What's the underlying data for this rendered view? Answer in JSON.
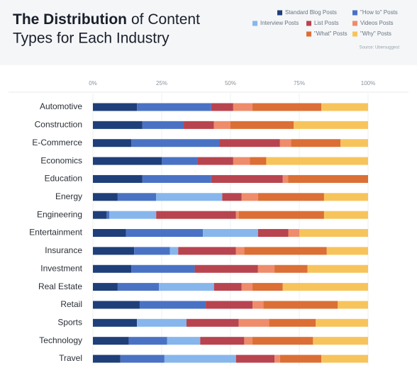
{
  "chart_data": {
    "type": "stacked_bar_horizontal",
    "title_bold": "The Distribution",
    "title_rest": "of Content",
    "title_line2": "Types for Each Industry",
    "source": "Source: Ubersuggest",
    "categories": [
      "Automotive",
      "Construction",
      "E-Commerce",
      "Economics",
      "Education",
      "Energy",
      "Engineering",
      "Entertainment",
      "Insurance",
      "Investment",
      "Real Estate",
      "Retail",
      "Sports",
      "Technology",
      "Travel"
    ],
    "series": [
      {
        "name": "Standard Blog Posts",
        "color": "#1f3f7a",
        "values": [
          16,
          18,
          14,
          25,
          18,
          9,
          5,
          12,
          15,
          14,
          9,
          17,
          16,
          13,
          10
        ]
      },
      {
        "name": "\"How to\" Posts",
        "color": "#4a72c4",
        "values": [
          27,
          15,
          32,
          13,
          25,
          14,
          1,
          28,
          13,
          23,
          15,
          24,
          0,
          14,
          16
        ]
      },
      {
        "name": "Interview Posts",
        "color": "#86b6ec",
        "values": [
          0,
          0,
          0,
          0,
          0,
          24,
          17,
          20,
          3,
          0,
          20,
          0,
          18,
          12,
          26
        ]
      },
      {
        "name": "List Posts",
        "color": "#b8444f",
        "values": [
          8,
          11,
          22,
          13,
          26,
          7,
          29,
          11,
          21,
          23,
          10,
          17,
          19,
          16,
          14
        ]
      },
      {
        "name": "Videos Posts",
        "color": "#ee8c6b",
        "values": [
          7,
          6,
          4,
          6,
          2,
          6,
          1,
          4,
          3,
          6,
          4,
          4,
          11,
          3,
          2
        ]
      },
      {
        "name": "\"What\" Posts",
        "color": "#dc6f35",
        "values": [
          25,
          23,
          18,
          6,
          29,
          24,
          31,
          0,
          30,
          12,
          11,
          27,
          17,
          22,
          15
        ]
      },
      {
        "name": "\"Why\" Posts",
        "color": "#f7c45c",
        "values": [
          17,
          27,
          10,
          37,
          0,
          16,
          16,
          25,
          15,
          22,
          31,
          11,
          19,
          20,
          17
        ]
      }
    ],
    "xlim": [
      0,
      100
    ],
    "xticks": [
      {
        "value": 0,
        "label": "0%"
      },
      {
        "value": 25,
        "label": "25%"
      },
      {
        "value": 50,
        "label": "50%"
      },
      {
        "value": 75,
        "label": "75%"
      },
      {
        "value": 100,
        "label": "100%"
      }
    ],
    "grid": true
  }
}
